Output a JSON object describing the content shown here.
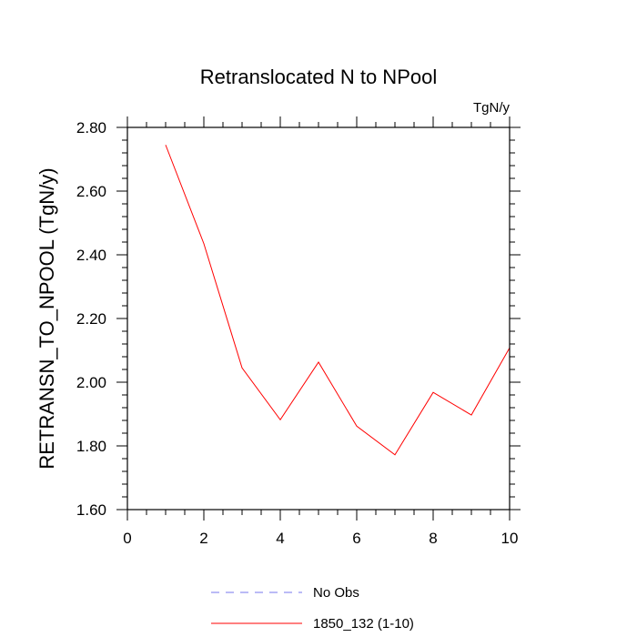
{
  "chart_data": {
    "type": "line",
    "title": "Retranslocated N to NPool",
    "units_label": "TgN/y",
    "xlabel": "",
    "ylabel": "RETRANSN_TO_NPOOL  (TgN/y)",
    "xlim": [
      0,
      10
    ],
    "ylim": [
      1.6,
      2.8
    ],
    "x_ticks": [
      0,
      2,
      4,
      6,
      8,
      10
    ],
    "x_tick_labels": [
      "0",
      "2",
      "4",
      "6",
      "8",
      "10"
    ],
    "y_ticks": [
      1.6,
      1.8,
      2.0,
      2.2,
      2.4,
      2.6,
      2.8
    ],
    "y_tick_labels": [
      "1.60",
      "1.80",
      "2.00",
      "2.20",
      "2.40",
      "2.60",
      "2.80"
    ],
    "grid": false,
    "series": [
      {
        "name": "1850_132 (1-10)",
        "color": "#ff0000",
        "dash": "solid",
        "x": [
          1,
          2,
          3,
          4,
          5,
          6,
          7,
          8,
          9,
          10
        ],
        "values": [
          2.745,
          2.435,
          2.045,
          1.882,
          2.063,
          1.862,
          1.772,
          1.968,
          1.897,
          2.108
        ]
      }
    ],
    "legend": {
      "position": "bottom-center",
      "entries": [
        {
          "label": "No Obs",
          "color": "#7777ee",
          "dash": "dashed"
        },
        {
          "label": "1850_132 (1-10)",
          "color": "#ff0000",
          "dash": "solid"
        }
      ]
    }
  }
}
